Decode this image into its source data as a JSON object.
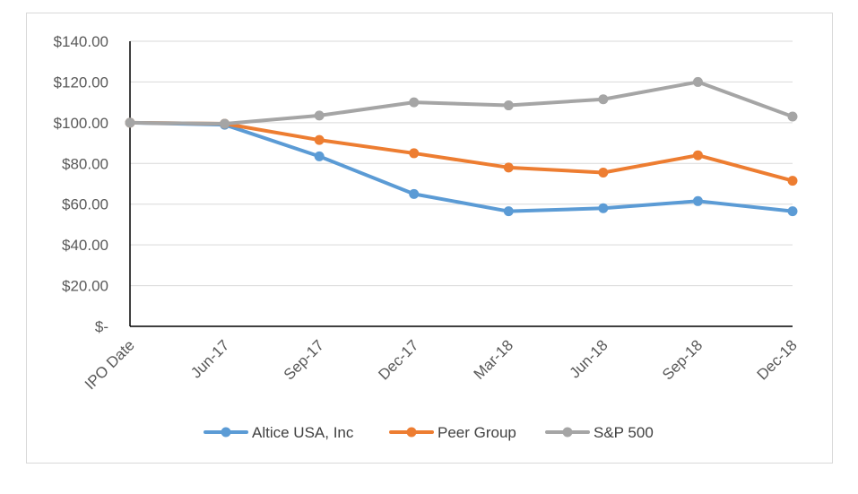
{
  "chart_data": {
    "type": "line",
    "title": "",
    "xlabel": "",
    "ylabel": "",
    "categories": [
      "IPO Date",
      "Jun-17",
      "Sep-17",
      "Dec-17",
      "Mar-18",
      "Jun-18",
      "Sep-18",
      "Dec-18"
    ],
    "ylim": [
      0,
      140
    ],
    "y_ticks": [
      0,
      20,
      40,
      60,
      80,
      100,
      120,
      140
    ],
    "y_tick_labels": [
      "$-",
      "$20.00",
      "$40.00",
      "$60.00",
      "$80.00",
      "$100.00",
      "$120.00",
      "$140.00"
    ],
    "grid": true,
    "legend_position": "bottom",
    "series": [
      {
        "name": "Altice USA, Inc",
        "color": "#5B9BD5",
        "values": [
          100,
          99,
          83.5,
          65,
          56.5,
          58,
          61.5,
          56.5
        ]
      },
      {
        "name": "Peer Group",
        "color": "#ED7D31",
        "values": [
          100,
          99.5,
          91.5,
          85,
          78,
          75.5,
          84,
          71.5
        ]
      },
      {
        "name": "S&P 500",
        "color": "#A5A5A5",
        "values": [
          100,
          99.5,
          103.5,
          110,
          108.5,
          111.5,
          120,
          103
        ]
      }
    ]
  }
}
